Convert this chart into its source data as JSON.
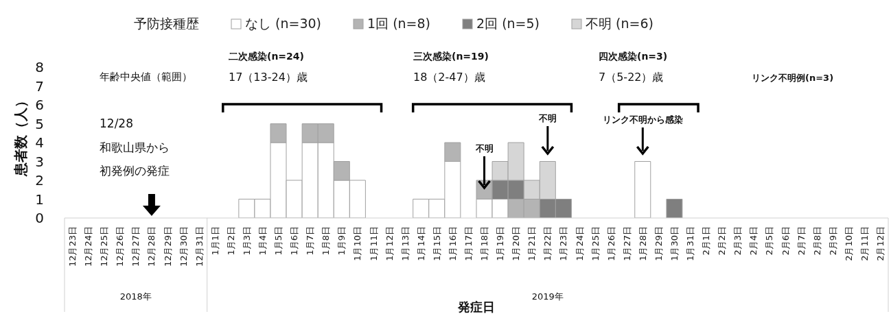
{
  "chart_data": {
    "type": "bar",
    "stacked": true,
    "xlabel": "発症日",
    "ylabel": "患者数（人）",
    "legend_title": "予防接種歴",
    "legend": "top",
    "categories": [
      "12月23日",
      "12月24日",
      "12月25日",
      "12月26日",
      "12月27日",
      "12月28日",
      "12月29日",
      "12月30日",
      "12月31日",
      "1月1日",
      "1月2日",
      "1月3日",
      "1月4日",
      "1月5日",
      "1月6日",
      "1月7日",
      "1月8日",
      "1月9日",
      "1月10日",
      "1月11日",
      "1月12日",
      "1月13日",
      "1月14日",
      "1月15日",
      "1月16日",
      "1月17日",
      "1月18日",
      "1月19日",
      "1月20日",
      "1月21日",
      "1月22日",
      "1月23日",
      "1月24日",
      "1月25日",
      "1月26日",
      "1月27日",
      "1月28日",
      "1月29日",
      "1月30日",
      "1月31日",
      "2月1日",
      "2月2日",
      "2月3日",
      "2月4日",
      "2月5日",
      "2月6日",
      "2月7日",
      "2月8日",
      "2月9日",
      "2月10日",
      "2月11日",
      "2月12日"
    ],
    "series": [
      {
        "name": "なし (n=30)",
        "color": "#ffffff",
        "values": [
          0,
          0,
          0,
          0,
          0,
          0,
          0,
          0,
          0,
          0,
          0,
          1,
          1,
          4,
          2,
          4,
          4,
          2,
          2,
          0,
          0,
          0,
          1,
          1,
          3,
          0,
          1,
          1,
          0,
          0,
          0,
          0,
          0,
          0,
          0,
          0,
          3,
          0,
          0,
          0,
          0,
          0,
          0,
          0,
          0,
          0,
          0,
          0,
          0,
          0,
          0,
          0
        ]
      },
      {
        "name": "1回 (n=8)",
        "color": "#b4b4b4",
        "values": [
          0,
          0,
          0,
          0,
          0,
          0,
          0,
          0,
          0,
          0,
          0,
          0,
          0,
          1,
          0,
          1,
          1,
          1,
          0,
          0,
          0,
          0,
          0,
          0,
          1,
          0,
          1,
          0,
          1,
          1,
          0,
          0,
          0,
          0,
          0,
          0,
          0,
          0,
          0,
          0,
          0,
          0,
          0,
          0,
          0,
          0,
          0,
          0,
          0,
          0,
          0,
          0
        ]
      },
      {
        "name": "2回 (n=5)",
        "color": "#7f7f7f",
        "values": [
          0,
          0,
          0,
          0,
          0,
          0,
          0,
          0,
          0,
          0,
          0,
          0,
          0,
          0,
          0,
          0,
          0,
          0,
          0,
          0,
          0,
          0,
          0,
          0,
          0,
          0,
          0,
          1,
          1,
          0,
          1,
          1,
          0,
          0,
          0,
          0,
          0,
          0,
          1,
          0,
          0,
          0,
          0,
          0,
          0,
          0,
          0,
          0,
          0,
          0,
          0,
          0
        ]
      },
      {
        "name": "不明 (n=6)",
        "color": "#d6d6d6",
        "values": [
          0,
          0,
          0,
          0,
          0,
          0,
          0,
          0,
          0,
          0,
          0,
          0,
          0,
          0,
          0,
          0,
          0,
          0,
          0,
          0,
          0,
          0,
          0,
          0,
          0,
          0,
          0,
          1,
          2,
          1,
          2,
          0,
          0,
          0,
          0,
          0,
          0,
          0,
          0,
          0,
          0,
          0,
          0,
          0,
          0,
          0,
          0,
          0,
          0,
          0,
          0,
          0
        ]
      }
    ],
    "ylim": [
      0,
      8
    ],
    "yticks": [
      0,
      1,
      2,
      3,
      4,
      5,
      6,
      7,
      8
    ],
    "annotations": [
      "年齢中央値（範囲）",
      "二次感染(n=24)",
      "17（13-24）歳",
      "三次感染(n=19)",
      "18（2-47）歳",
      "四次感染(n=3)",
      "7（5-22）歳",
      "リンク不明例(n=3)",
      "12/28",
      "和歌山県から",
      "初発例の発症",
      "不明",
      "不明",
      "リンク不明から感染",
      "2018年",
      "2019年"
    ]
  }
}
